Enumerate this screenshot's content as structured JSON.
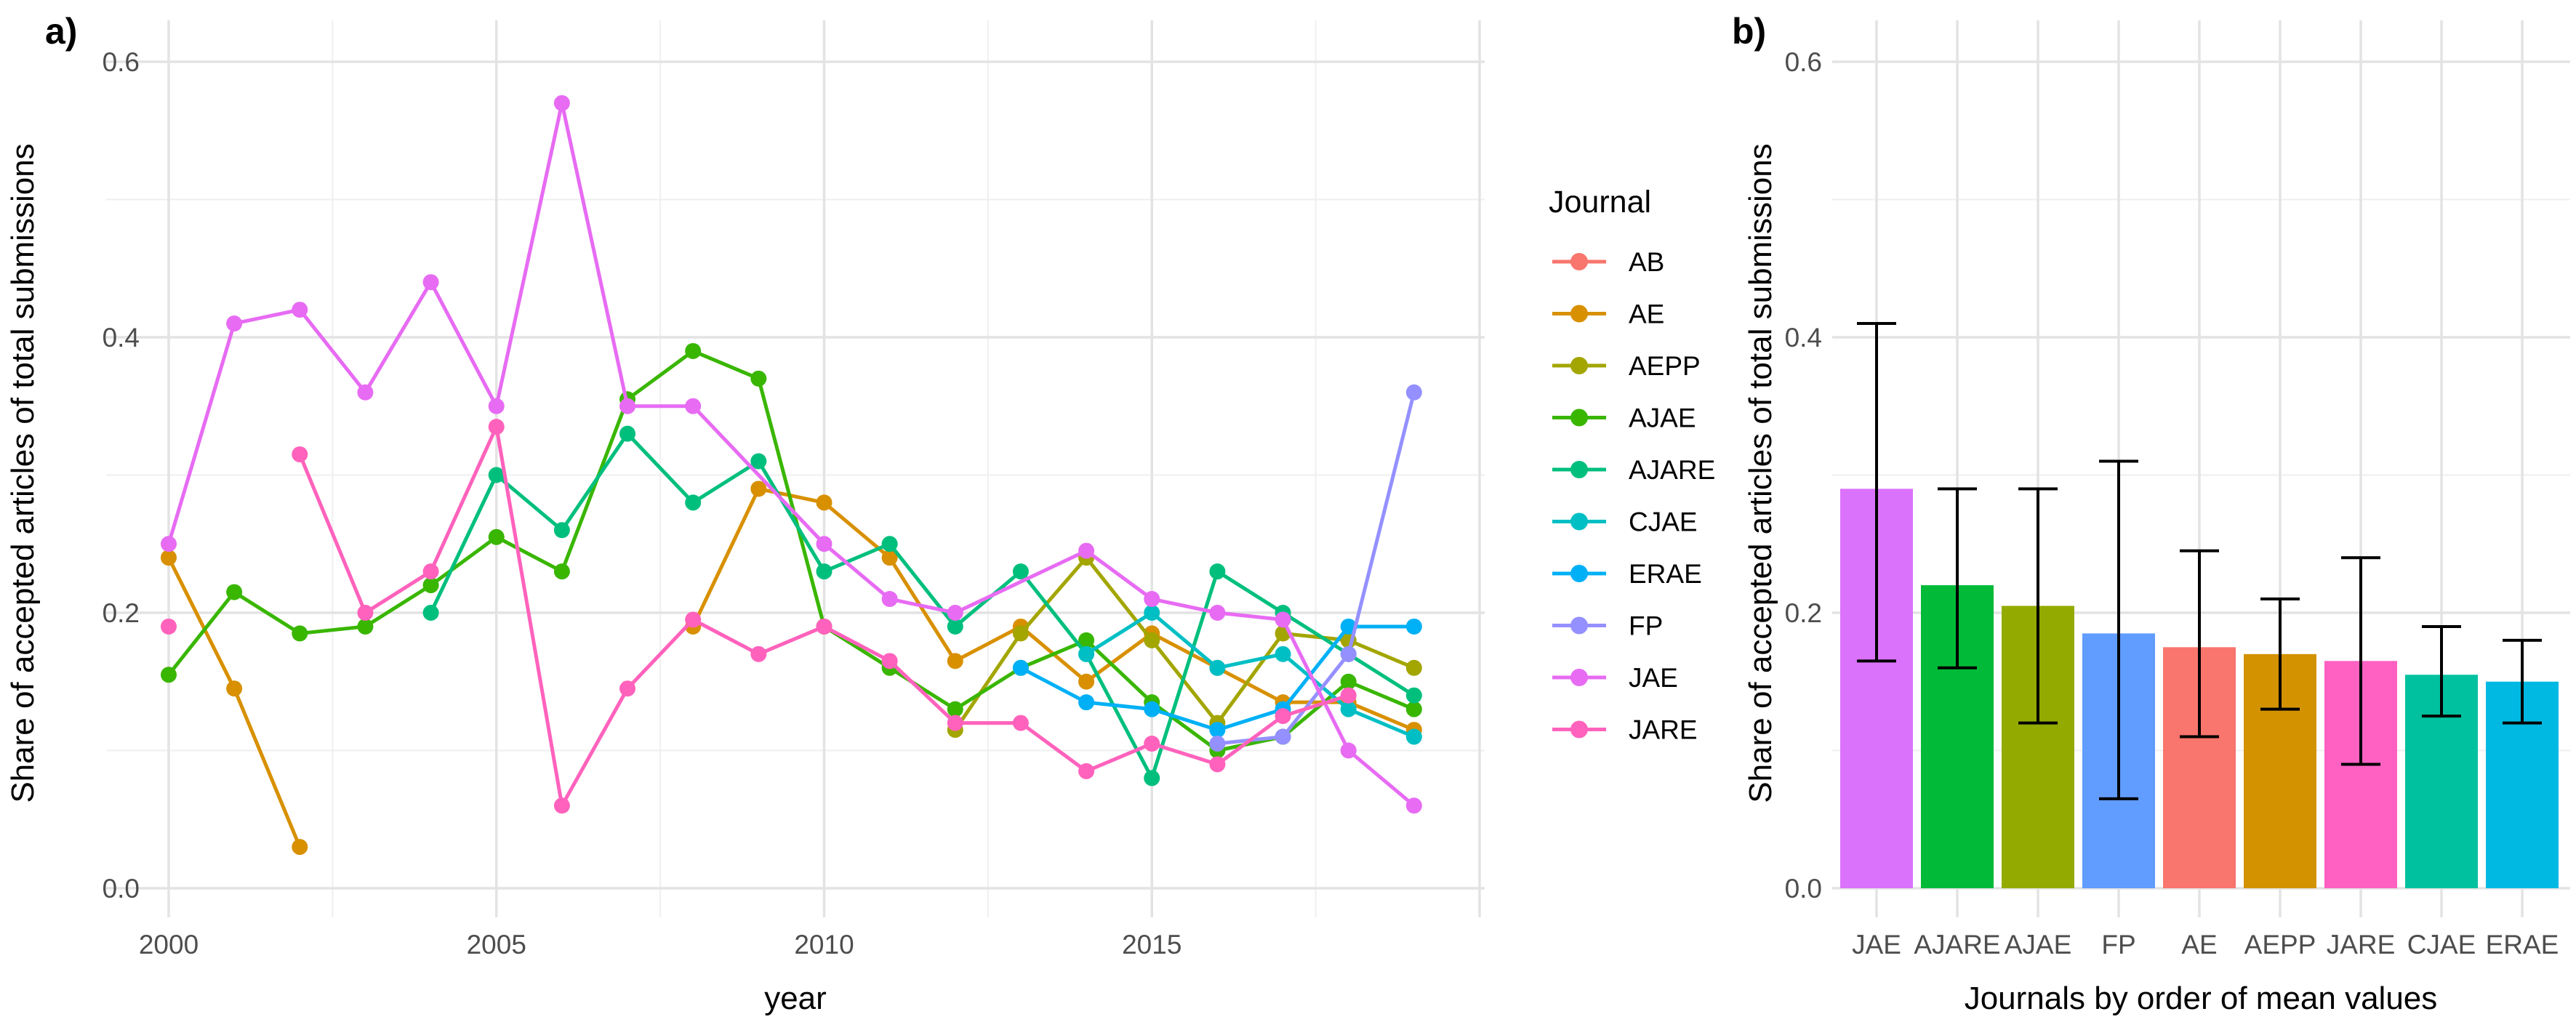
{
  "figure": {
    "background": "#ffffff",
    "gridline_major_color": "#e3e3e3",
    "gridline_minor_color": "#efefef",
    "tick_label_color": "#4d4d4d",
    "errorbar_color": "#000000"
  },
  "legend": {
    "title": "Journal",
    "entries": [
      {
        "label": "AB",
        "color": "#F8766D"
      },
      {
        "label": "AE",
        "color": "#D89000"
      },
      {
        "label": "AEPP",
        "color": "#A3A500"
      },
      {
        "label": "AJAE",
        "color": "#39B600"
      },
      {
        "label": "AJARE",
        "color": "#00BF7D"
      },
      {
        "label": "CJAE",
        "color": "#00BFC4"
      },
      {
        "label": "ERAE",
        "color": "#00B0F6"
      },
      {
        "label": "FP",
        "color": "#9590FF"
      },
      {
        "label": "JAE",
        "color": "#E76BF3"
      },
      {
        "label": "JARE",
        "color": "#FF62BC"
      }
    ]
  },
  "chart_data": [
    {
      "id": "a",
      "tag": "a)",
      "type": "line",
      "xlabel": "year",
      "ylabel": "Share of accepted articles of total submissions",
      "xlim": [
        1999.05,
        2020.1
      ],
      "ylim": [
        0.0,
        0.6
      ],
      "x_ticks": [
        2000,
        2005,
        2010,
        2015
      ],
      "x_gridlines_major": [
        2000,
        2005,
        2010,
        2015,
        2020
      ],
      "x_gridlines_minor": [
        2002.5,
        2007.5,
        2012.5,
        2017.5
      ],
      "y_ticks": [
        0.0,
        0.2,
        0.4,
        0.6
      ],
      "y_gridlines_minor": [
        0.1,
        0.3,
        0.5
      ],
      "grid": true,
      "legend_position": "right",
      "series": [
        {
          "name": "AB",
          "color": "#F8766D",
          "segments": []
        },
        {
          "name": "AE",
          "color": "#D89000",
          "segments": [
            [
              [
                2000,
                0.24
              ],
              [
                2001,
                0.145
              ],
              [
                2002,
                0.03
              ]
            ],
            [
              [
                2008,
                0.19
              ],
              [
                2009,
                0.29
              ],
              [
                2010,
                0.28
              ],
              [
                2011,
                0.24
              ],
              [
                2012,
                0.165
              ],
              [
                2013,
                0.19
              ],
              [
                2014,
                0.15
              ],
              [
                2015,
                0.185
              ],
              [
                2016,
                0.16
              ],
              [
                2017,
                0.135
              ],
              [
                2018,
                0.135
              ],
              [
                2019,
                0.115
              ]
            ]
          ]
        },
        {
          "name": "AEPP",
          "color": "#A3A500",
          "segments": [
            [
              [
                2012,
                0.115
              ],
              [
                2013,
                0.185
              ],
              [
                2014,
                0.24
              ],
              [
                2015,
                0.18
              ],
              [
                2016,
                0.12
              ],
              [
                2017,
                0.185
              ],
              [
                2018,
                0.18
              ],
              [
                2019,
                0.16
              ]
            ]
          ]
        },
        {
          "name": "AJAE",
          "color": "#39B600",
          "segments": [
            [
              [
                2000,
                0.155
              ],
              [
                2001,
                0.215
              ],
              [
                2002,
                0.185
              ],
              [
                2003,
                0.19
              ],
              [
                2004,
                0.22
              ],
              [
                2005,
                0.255
              ],
              [
                2006,
                0.23
              ],
              [
                2007,
                0.355
              ],
              [
                2008,
                0.39
              ],
              [
                2009,
                0.37
              ],
              [
                2010,
                0.19
              ],
              [
                2011,
                0.16
              ],
              [
                2012,
                0.13
              ],
              [
                2013,
                0.16
              ],
              [
                2014,
                0.18
              ],
              [
                2015,
                0.135
              ],
              [
                2016,
                0.1
              ],
              [
                2017,
                0.11
              ],
              [
                2018,
                0.15
              ],
              [
                2019,
                0.13
              ]
            ]
          ]
        },
        {
          "name": "AJARE",
          "color": "#00BF7D",
          "segments": [
            [
              [
                2004,
                0.2
              ],
              [
                2005,
                0.3
              ],
              [
                2006,
                0.26
              ],
              [
                2007,
                0.33
              ],
              [
                2008,
                0.28
              ],
              [
                2009,
                0.31
              ],
              [
                2010,
                0.23
              ],
              [
                2011,
                0.25
              ],
              [
                2012,
                0.19
              ],
              [
                2013,
                0.23
              ],
              [
                2014,
                0.17
              ],
              [
                2015,
                0.08
              ],
              [
                2016,
                0.23
              ],
              [
                2017,
                0.2
              ],
              [
                2018,
                0.17
              ],
              [
                2019,
                0.14
              ]
            ]
          ]
        },
        {
          "name": "CJAE",
          "color": "#00BFC4",
          "segments": [
            [
              [
                2014,
                0.17
              ],
              [
                2015,
                0.2
              ],
              [
                2016,
                0.16
              ],
              [
                2017,
                0.17
              ],
              [
                2018,
                0.13
              ],
              [
                2019,
                0.11
              ]
            ]
          ]
        },
        {
          "name": "ERAE",
          "color": "#00B0F6",
          "segments": [
            [
              [
                2013,
                0.16
              ],
              [
                2014,
                0.135
              ],
              [
                2015,
                0.13
              ],
              [
                2016,
                0.115
              ],
              [
                2017,
                0.13
              ],
              [
                2018,
                0.19
              ],
              [
                2019,
                0.19
              ]
            ]
          ]
        },
        {
          "name": "FP",
          "color": "#9590FF",
          "segments": [
            [
              [
                2016,
                0.105
              ],
              [
                2017,
                0.11
              ],
              [
                2018,
                0.17
              ],
              [
                2019,
                0.36
              ]
            ]
          ]
        },
        {
          "name": "JAE",
          "color": "#E76BF3",
          "segments": [
            [
              [
                2000,
                0.25
              ],
              [
                2001,
                0.41
              ],
              [
                2002,
                0.42
              ],
              [
                2003,
                0.36
              ],
              [
                2004,
                0.44
              ],
              [
                2005,
                0.35
              ],
              [
                2006,
                0.57
              ],
              [
                2007,
                0.35
              ],
              [
                2008,
                0.35
              ],
              [
                2010,
                0.25
              ],
              [
                2011,
                0.21
              ],
              [
                2012,
                0.2
              ],
              [
                2014,
                0.245
              ],
              [
                2015,
                0.21
              ],
              [
                2016,
                0.2
              ],
              [
                2017,
                0.195
              ],
              [
                2018,
                0.1
              ],
              [
                2019,
                0.06
              ]
            ]
          ]
        },
        {
          "name": "JARE",
          "color": "#FF62BC",
          "segments": [
            [
              [
                2000,
                0.19
              ]
            ],
            [
              [
                2002,
                0.315
              ],
              [
                2003,
                0.2
              ],
              [
                2004,
                0.23
              ],
              [
                2005,
                0.335
              ],
              [
                2006,
                0.06
              ],
              [
                2007,
                0.145
              ],
              [
                2008,
                0.195
              ],
              [
                2009,
                0.17
              ],
              [
                2010,
                0.19
              ],
              [
                2011,
                0.165
              ],
              [
                2012,
                0.12
              ],
              [
                2013,
                0.12
              ],
              [
                2014,
                0.085
              ],
              [
                2015,
                0.105
              ],
              [
                2016,
                0.09
              ],
              [
                2017,
                0.125
              ],
              [
                2018,
                0.14
              ]
            ]
          ]
        }
      ]
    },
    {
      "id": "b",
      "tag": "b)",
      "type": "bar",
      "xlabel": "Journals by order of mean values",
      "ylabel": "Share of accepted articles of total submissions",
      "ylim": [
        0.0,
        0.6
      ],
      "y_ticks": [
        0.0,
        0.2,
        0.4,
        0.6
      ],
      "y_gridlines_minor": [
        0.1,
        0.3,
        0.5
      ],
      "grid": true,
      "categories": [
        "JAE",
        "AJARE",
        "AJAE",
        "FP",
        "AE",
        "AEPP",
        "JARE",
        "CJAE",
        "ERAE"
      ],
      "values": [
        0.29,
        0.22,
        0.205,
        0.185,
        0.175,
        0.17,
        0.165,
        0.155,
        0.15
      ],
      "error_low": [
        0.165,
        0.16,
        0.12,
        0.065,
        0.11,
        0.13,
        0.09,
        0.125,
        0.12
      ],
      "error_high": [
        0.41,
        0.29,
        0.29,
        0.31,
        0.245,
        0.21,
        0.24,
        0.19,
        0.18
      ],
      "colors": [
        "#DB72FB",
        "#00BA38",
        "#93AA00",
        "#619CFF",
        "#F8766D",
        "#D39200",
        "#FF61C3",
        "#00C19F",
        "#00B9E3"
      ]
    }
  ]
}
